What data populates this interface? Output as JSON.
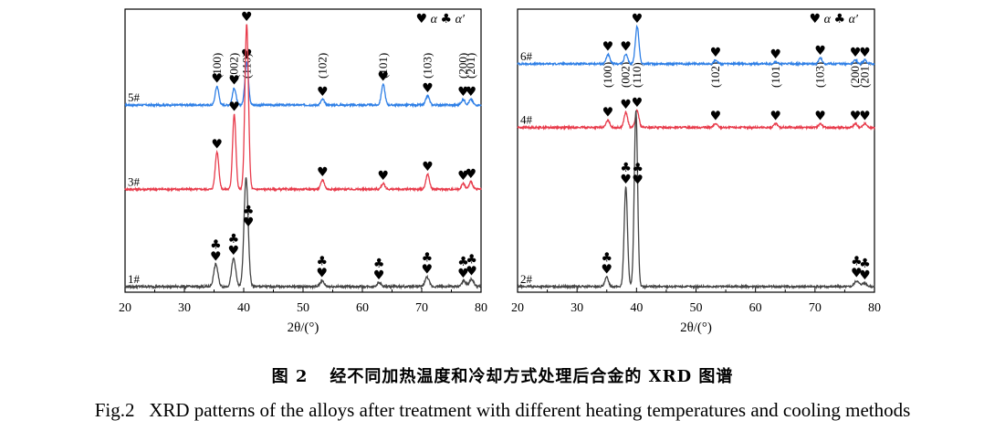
{
  "caption": {
    "cn_label": "图 2",
    "cn_text": "经不同加热温度和冷却方式处理后合金的 XRD 图谱",
    "en_label": "Fig.2",
    "en_text": "XRD patterns of the alloys after treatment with different heating temperatures and cooling methods"
  },
  "colors": {
    "blue": "#2e7fe6",
    "red": "#e83b4b",
    "gray": "#444444"
  },
  "legend": {
    "alpha_symbol": "♥",
    "alpha_label": "α",
    "alpha_prime_symbol": "♣",
    "alpha_prime_label": "α′"
  },
  "chart_data": [
    {
      "type": "line",
      "panel": "left",
      "xlabel": "2θ/(°)",
      "xlim": [
        20,
        80
      ],
      "xticks": [
        20,
        30,
        40,
        50,
        60,
        70,
        80
      ],
      "y_axis": "intensity (arbitrary, offset stacked, no tick labels)",
      "hkl": [
        {
          "label": "(100)",
          "x": 35.5
        },
        {
          "label": "(002)",
          "x": 38.4
        },
        {
          "label": "(110)",
          "x": 40.5
        },
        {
          "label": "(102)",
          "x": 53.3
        },
        {
          "label": "(101)",
          "x": 63.5
        },
        {
          "label": "(103)",
          "x": 71.0
        },
        {
          "label": "(200)",
          "x": 77.0
        },
        {
          "label": "(201)",
          "x": 78.3
        }
      ],
      "series": [
        {
          "name": "5#",
          "color": "blue",
          "offset": 100,
          "noise": 0.5,
          "peaks": [
            [
              35.5,
              10,
              0.3
            ],
            [
              38.4,
              9,
              0.3
            ],
            [
              40.5,
              23,
              0.3
            ],
            [
              53.3,
              3,
              0.3
            ],
            [
              63.5,
              11,
              0.3
            ],
            [
              71.0,
              5,
              0.3
            ],
            [
              77.0,
              3,
              0.3
            ],
            [
              78.3,
              3,
              0.3
            ]
          ],
          "markers": [
            {
              "x": 35.5,
              "sym": "h"
            },
            {
              "x": 38.4,
              "sym": "h"
            },
            {
              "x": 40.5,
              "sym": "h"
            },
            {
              "x": 53.3,
              "sym": "h"
            },
            {
              "x": 63.5,
              "sym": "h"
            },
            {
              "x": 71.0,
              "sym": "h"
            },
            {
              "x": 77.0,
              "sym": "h"
            },
            {
              "x": 78.3,
              "sym": "h"
            }
          ]
        },
        {
          "name": "3#",
          "color": "red",
          "offset": 55,
          "noise": 0.5,
          "peaks": [
            [
              35.5,
              20,
              0.3
            ],
            [
              38.4,
              40,
              0.28
            ],
            [
              40.5,
              88,
              0.3
            ],
            [
              53.3,
              5,
              0.3
            ],
            [
              63.5,
              3,
              0.3
            ],
            [
              71.0,
              8,
              0.3
            ],
            [
              77.0,
              3,
              0.3
            ],
            [
              78.3,
              4,
              0.3
            ]
          ],
          "markers": [
            {
              "x": 35.5,
              "sym": "h"
            },
            {
              "x": 38.4,
              "sym": "h"
            },
            {
              "x": 40.5,
              "sym": "h"
            },
            {
              "x": 53.3,
              "sym": "h"
            },
            {
              "x": 63.5,
              "sym": "h"
            },
            {
              "x": 71.0,
              "sym": "h"
            },
            {
              "x": 77.0,
              "sym": "h"
            },
            {
              "x": 78.3,
              "sym": "h"
            }
          ]
        },
        {
          "name": "1#",
          "color": "gray",
          "offset": 3,
          "noise": 0.6,
          "peaks": [
            [
              35.3,
              12,
              0.35
            ],
            [
              38.3,
              15,
              0.35
            ],
            [
              40.4,
              58,
              0.35
            ],
            [
              53.2,
              3,
              0.35
            ],
            [
              62.8,
              2,
              0.35
            ],
            [
              70.9,
              5,
              0.35
            ],
            [
              77.1,
              3,
              0.35
            ],
            [
              78.4,
              4,
              0.35
            ]
          ],
          "markers": [
            {
              "x": 35.3,
              "sym": "hc"
            },
            {
              "x": 38.3,
              "sym": "hc"
            },
            {
              "x": 40.8,
              "sym": "hc"
            },
            {
              "x": 53.2,
              "sym": "hc"
            },
            {
              "x": 62.8,
              "sym": "hc"
            },
            {
              "x": 70.9,
              "sym": "hc"
            },
            {
              "x": 77.0,
              "sym": "hc"
            },
            {
              "x": 78.4,
              "sym": "hc"
            }
          ]
        }
      ]
    },
    {
      "type": "line",
      "panel": "right",
      "xlabel": "2θ/(°)",
      "xlim": [
        20,
        80
      ],
      "xticks": [
        20,
        30,
        40,
        50,
        60,
        70,
        80
      ],
      "y_axis": "intensity (arbitrary, offset stacked, no tick labels)",
      "hkl": [
        {
          "label": "(100)",
          "x": 35.2
        },
        {
          "label": "(002)",
          "x": 38.2
        },
        {
          "label": "(110)",
          "x": 40.1
        },
        {
          "label": "(102)",
          "x": 53.3
        },
        {
          "label": "(101)",
          "x": 63.4
        },
        {
          "label": "(103)",
          "x": 70.9
        },
        {
          "label": "(200)",
          "x": 76.8
        },
        {
          "label": "(201)",
          "x": 78.4
        }
      ],
      "series": [
        {
          "name": "6#",
          "color": "blue",
          "offset": 122,
          "noise": 0.5,
          "peaks": [
            [
              35.2,
              5,
              0.3
            ],
            [
              38.2,
              5,
              0.3
            ],
            [
              40.1,
              20,
              0.3
            ],
            [
              53.3,
              2,
              0.3
            ],
            [
              63.4,
              1,
              0.3
            ],
            [
              70.9,
              3,
              0.3
            ],
            [
              76.8,
              2,
              0.3
            ],
            [
              78.4,
              2,
              0.3
            ]
          ],
          "markers": [
            {
              "x": 35.2,
              "sym": "h"
            },
            {
              "x": 38.2,
              "sym": "h"
            },
            {
              "x": 40.1,
              "sym": "h"
            },
            {
              "x": 53.3,
              "sym": "h"
            },
            {
              "x": 63.4,
              "sym": "h"
            },
            {
              "x": 70.9,
              "sym": "h"
            },
            {
              "x": 76.8,
              "sym": "h"
            },
            {
              "x": 78.4,
              "sym": "h"
            }
          ]
        },
        {
          "name": "4#",
          "color": "red",
          "offset": 88,
          "noise": 0.5,
          "peaks": [
            [
              35.2,
              4,
              0.3
            ],
            [
              38.2,
              8,
              0.3
            ],
            [
              40.1,
              9,
              0.3
            ],
            [
              53.3,
              2,
              0.3
            ],
            [
              63.4,
              2,
              0.3
            ],
            [
              70.9,
              2,
              0.3
            ],
            [
              76.8,
              2,
              0.3
            ],
            [
              78.4,
              2,
              0.3
            ]
          ],
          "markers": [
            {
              "x": 35.2,
              "sym": "h"
            },
            {
              "x": 38.2,
              "sym": "h"
            },
            {
              "x": 40.1,
              "sym": "h"
            },
            {
              "x": 53.3,
              "sym": "h"
            },
            {
              "x": 63.4,
              "sym": "h"
            },
            {
              "x": 70.9,
              "sym": "h"
            },
            {
              "x": 76.8,
              "sym": "h"
            },
            {
              "x": 78.4,
              "sym": "h"
            }
          ]
        },
        {
          "name": "2#",
          "color": "gray",
          "offset": 3,
          "noise": 0.5,
          "peaks": [
            [
              35.0,
              5,
              0.3
            ],
            [
              38.2,
              53,
              0.28
            ],
            [
              39.9,
              94,
              0.28
            ],
            [
              77.0,
              3,
              0.4
            ],
            [
              78.3,
              2,
              0.4
            ]
          ],
          "markers": [
            {
              "x": 35.0,
              "sym": "hc"
            },
            {
              "x": 38.2,
              "sym": "hc"
            },
            {
              "x": 40.2,
              "sym": "hc"
            },
            {
              "x": 77.0,
              "sym": "hc"
            },
            {
              "x": 78.4,
              "sym": "hc"
            }
          ]
        }
      ]
    }
  ]
}
